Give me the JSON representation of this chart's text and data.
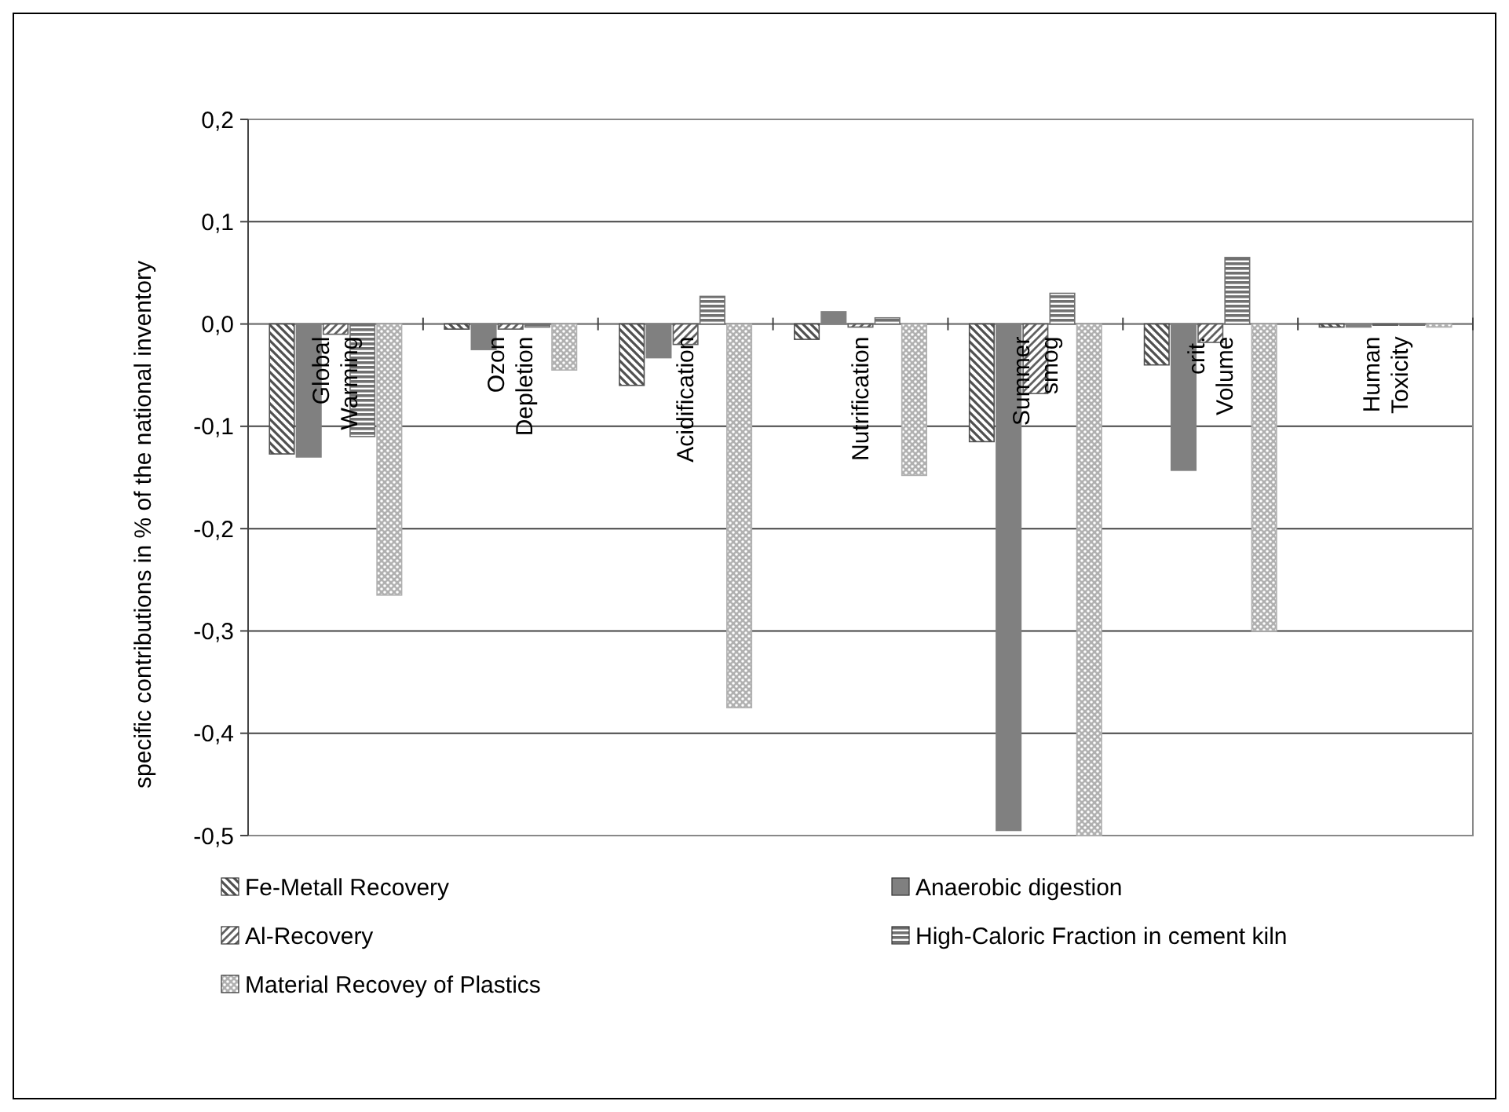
{
  "chart_data": {
    "type": "bar",
    "ylabel": "specific contributions in % of the national inventory",
    "categories": [
      "Global Warming",
      "Ozon Depletion",
      "Acidification",
      "Nutrification",
      "Summer smog",
      "crit. Volume",
      "Human Toxicity"
    ],
    "series": [
      {
        "name": "Fe-Metall Recovery",
        "color": "#505050",
        "values": [
          -0.127,
          -0.005,
          -0.06,
          -0.015,
          -0.115,
          -0.04,
          -0.003
        ]
      },
      {
        "name": "Anaerobic digestion",
        "color": "#808080",
        "values": [
          -0.13,
          -0.025,
          -0.033,
          0.012,
          -0.495,
          -0.143,
          -0.003
        ]
      },
      {
        "name": "Al-Recovery",
        "color": "#606060",
        "values": [
          -0.01,
          -0.005,
          -0.02,
          -0.003,
          -0.068,
          -0.018,
          0
        ]
      },
      {
        "name": "High-Caloric Fraction in cement kiln",
        "color": "#707070",
        "values": [
          -0.11,
          -0.003,
          0.027,
          0.006,
          0.03,
          0.065,
          0
        ]
      },
      {
        "name": "Material Recovey of Plastics",
        "color": "#b0b0b0",
        "values": [
          -0.265,
          -0.045,
          -0.375,
          -0.148,
          -0.5,
          -0.3,
          -0.003
        ]
      }
    ],
    "ylim": [
      -0.5,
      0.2
    ],
    "yticks": [
      {
        "value": 0.2,
        "label": "0,2"
      },
      {
        "value": 0.1,
        "label": "0,1"
      },
      {
        "value": 0,
        "label": "0,0"
      },
      {
        "value": -0.1,
        "label": "-0,1"
      },
      {
        "value": -0.2,
        "label": "-0,2"
      },
      {
        "value": -0.3,
        "label": "-0,3"
      },
      {
        "value": -0.4,
        "label": "-0,4"
      },
      {
        "value": -0.5,
        "label": "-0,5"
      }
    ],
    "grid": "y",
    "legend": "bottom"
  }
}
